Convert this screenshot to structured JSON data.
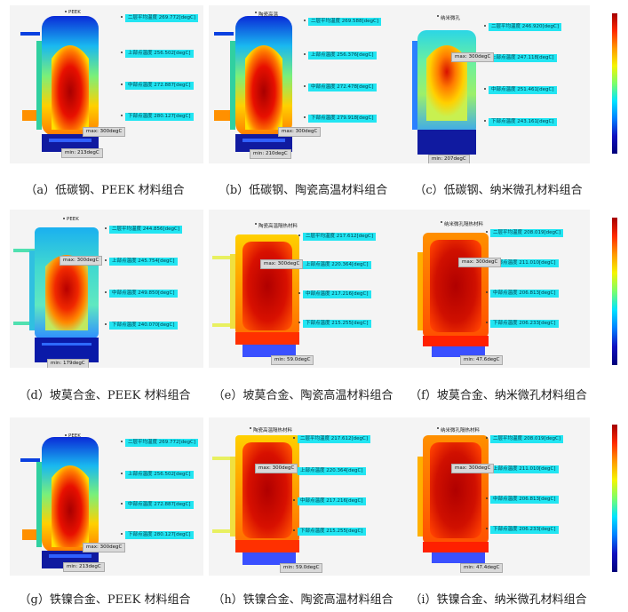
{
  "probe_labels": {
    "p1": "二层平均温度",
    "p2": "上部点温度",
    "p3": "中部点温度",
    "p4": "下部点温度"
  },
  "panels": [
    {
      "material": "PEEK",
      "p1": "269.772[degC]",
      "p2": "256.502[degC]",
      "p3": "272.887[degC]",
      "p4": "280.127[degC]",
      "max": "max: 300degC",
      "min": "min: 213degC",
      "caption": "（a）低碳钢、PEEK 材料组合"
    },
    {
      "material": "陶瓷高温",
      "p1": "269.588[degC]",
      "p2": "256.376[degC]",
      "p3": "272.478[degC]",
      "p4": "279.918[degC]",
      "max": "max: 300degC",
      "min": "min: 210degC",
      "caption": "（b）低碳钢、陶瓷高温材料组合"
    },
    {
      "material": "纳米微孔",
      "p1": "246.920[degC]",
      "p2": "247.118[degC]",
      "p3": "251.461[degC]",
      "p4": "243.161[degC]",
      "max": "max: 300degC",
      "min": "min: 207degC",
      "caption": "（c）低碳钢、纳米微孔材料组合"
    },
    {
      "material": "PEEK",
      "p1": "244.856[degC]",
      "p2": "245.754[degC]",
      "p3": "249.850[degC]",
      "p4": "240.070[degC]",
      "max": "max: 300degC",
      "min": "min: 179degC",
      "caption": "（d）坡莫合金、PEEK 材料组合"
    },
    {
      "material": "陶瓷高温隔热材料",
      "p1": "217.612[degC]",
      "p2": "220.364[degC]",
      "p3": "217.216[degC]",
      "p4": "215.255[degC]",
      "max": "max: 300degC",
      "min": "min: 59.0degC",
      "caption": "（e）坡莫合金、陶瓷高温材料组合"
    },
    {
      "material": "纳米微孔隔热材料",
      "p1": "208.019[degC]",
      "p2": "211.010[degC]",
      "p3": "206.813[degC]",
      "p4": "206.233[degC]",
      "max": "max: 300degC",
      "min": "min: 47.6degC",
      "caption": "（f）坡莫合金、纳米微孔材料组合"
    },
    {
      "material": "PEEK",
      "p1": "269.772[degC]",
      "p2": "256.502[degC]",
      "p3": "272.887[degC]",
      "p4": "280.127[degC]",
      "max": "max: 300degC",
      "min": "min: 213degC",
      "caption": "（g）铁镍合金、PEEK 材料组合"
    },
    {
      "material": "陶瓷高温隔热材料",
      "p1": "217.612[degC]",
      "p2": "220.364[degC]",
      "p3": "217.216[degC]",
      "p4": "215.255[degC]",
      "max": "max: 300degC",
      "min": "min: 59.0degC",
      "caption": "（h）铁镍合金、陶瓷高温材料组合"
    },
    {
      "material": "纳米微孔隔热材料",
      "p1": "208.019[degC]",
      "p2": "211.010[degC]",
      "p3": "206.813[degC]",
      "p4": "206.233[degC]",
      "max": "max: 300degC",
      "min": "min: 47.4degC",
      "caption": "（i）铁镍合金、纳米微孔材料组合"
    }
  ],
  "colors": {
    "hot": "#b00000",
    "warm": "#ff6a00",
    "mid": "#f2e600",
    "cool": "#3fe0c0",
    "cold": "#0a1ab0",
    "probe_bg": "#22e5f2"
  }
}
